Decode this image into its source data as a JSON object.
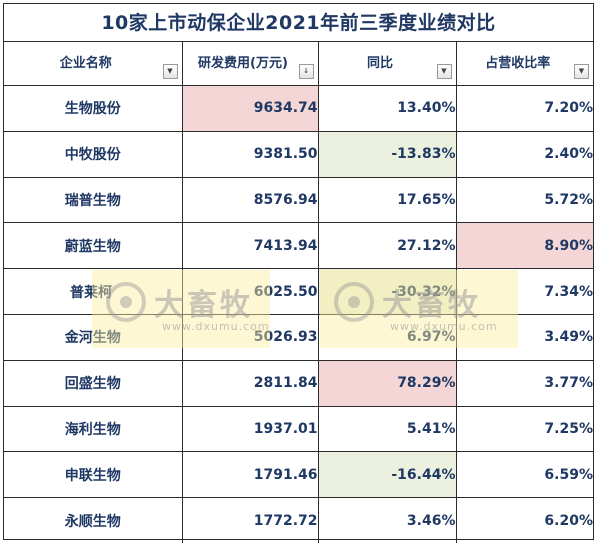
{
  "title": "10家上市动保企业2021年前三季度业绩对比",
  "headers": [
    {
      "label": "企业名称",
      "filter_icon": "filter-dropdown-icon",
      "filter_glyph": "▼"
    },
    {
      "label": "研发费用(万元)",
      "filter_icon": "sort-descending-icon",
      "filter_glyph": "↓"
    },
    {
      "label": "同比",
      "filter_icon": "filter-dropdown-icon",
      "filter_glyph": "▼"
    },
    {
      "label": "占营收比率",
      "filter_icon": "filter-dropdown-icon",
      "filter_glyph": "▼"
    }
  ],
  "rows": [
    {
      "name": "生物股份",
      "rd": "9634.74",
      "yoy": "13.40%",
      "ratio": "7.20%"
    },
    {
      "name": "中牧股份",
      "rd": "9381.50",
      "yoy": "-13.83%",
      "ratio": "2.40%"
    },
    {
      "name": "瑞普生物",
      "rd": "8576.94",
      "yoy": "17.65%",
      "ratio": "5.72%"
    },
    {
      "name": "蔚蓝生物",
      "rd": "7413.94",
      "yoy": "27.12%",
      "ratio": "8.90%"
    },
    {
      "name": "普莱柯",
      "rd": "6025.50",
      "yoy": "-30.32%",
      "ratio": "7.34%"
    },
    {
      "name": "金河生物",
      "rd": "5026.93",
      "yoy": "6.97%",
      "ratio": "3.49%"
    },
    {
      "name": "回盛生物",
      "rd": "2811.84",
      "yoy": "78.29%",
      "ratio": "3.77%"
    },
    {
      "name": "海利生物",
      "rd": "1937.01",
      "yoy": "5.41%",
      "ratio": "7.25%"
    },
    {
      "name": "申联生物",
      "rd": "1791.46",
      "yoy": "-16.44%",
      "ratio": "6.59%"
    },
    {
      "name": "永顺生物",
      "rd": "1772.72",
      "yoy": "3.46%",
      "ratio": "6.20%"
    }
  ],
  "watermark": {
    "brand": "大畜牧",
    "site": "www.dxumu.com"
  },
  "colors": {
    "text": "#1f3864",
    "highlight_red": "#f3d6d5",
    "highlight_green": "#ebf1de",
    "watermark_bg": "#faeea0",
    "border": "#2b2b2b"
  }
}
